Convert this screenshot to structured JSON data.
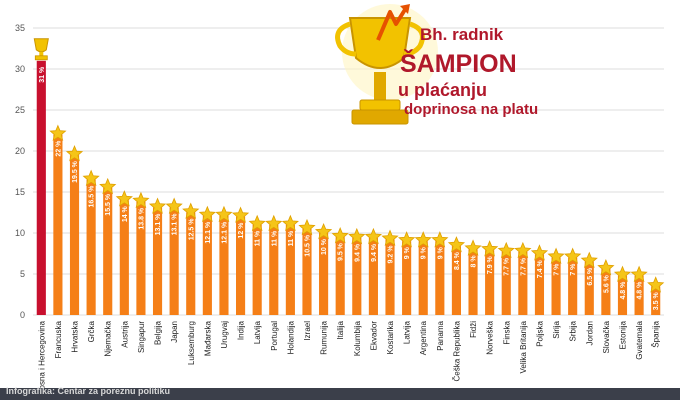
{
  "chart_data": {
    "type": "bar",
    "title_lines": [
      "Bh. radnik",
      "ŠAMPION",
      "u plaćanju",
      "doprinosa na platu"
    ],
    "ylim": [
      0,
      35
    ],
    "yticks": [
      0,
      5,
      10,
      15,
      20,
      25,
      30,
      35
    ],
    "categories": [
      "Bosna i Hercegovina",
      "Francuska",
      "Hrvatska",
      "Grčka",
      "Njemačka",
      "Austrija",
      "Singapur",
      "Belgija",
      "Japan",
      "Luksemburg",
      "Mađarska",
      "Urugvaj",
      "Indija",
      "Latvija",
      "Portugal",
      "Holandija",
      "Izrael",
      "Rumunija",
      "Italija",
      "Kolumbija",
      "Ekvador",
      "Kostarika",
      "Latvija",
      "Argentina",
      "Panama",
      "Češka Republika",
      "Fidži",
      "Norveška",
      "Finska",
      "Velika Britanija",
      "Poljska",
      "Sirija",
      "Srbija",
      "Jordan",
      "Slovačka",
      "Estonija",
      "Gvatemala",
      "Španija"
    ],
    "values": [
      31,
      22,
      19.5,
      16.5,
      15.5,
      14,
      13.8,
      13.1,
      13.1,
      12.5,
      12.1,
      12.1,
      12,
      11,
      11,
      11,
      10.5,
      10,
      9.5,
      9.4,
      9.4,
      9.2,
      9,
      9,
      9,
      8.4,
      8,
      7.9,
      7.7,
      7.7,
      7.4,
      7,
      7,
      6.5,
      5.6,
      4.8,
      4.8,
      3.5
    ],
    "value_labels": [
      "31 %",
      "22 %",
      "19.5 %",
      "16.5 %",
      "15.5 %",
      "14 %",
      "13.8 %",
      "13.1 %",
      "13.1 %",
      "12.5 %",
      "12.1 %",
      "12.1 %",
      "12 %",
      "11 %",
      "11 %",
      "11 %",
      "10.5 %",
      "10 %",
      "9.5 %",
      "9.4 %",
      "9.4 %",
      "9.2 %",
      "9 %",
      "9 %",
      "9 %",
      "8.4 %",
      "8 %",
      "7.9 %",
      "7.7 %",
      "7.7 %",
      "7.4 %",
      "7 %",
      "7 %",
      "6.5 %",
      "5.6 %",
      "4.8 %",
      "4.8 %",
      "3.5 %"
    ],
    "grid": true,
    "highlight_index": 0
  },
  "colors": {
    "highlight_bar": "#c8102e",
    "bar": "#f57f17",
    "star": "#f5c518",
    "trophy": "#f2c200",
    "title": "#b0182b",
    "grid": "#dddddd"
  },
  "footer_text": "Infografika: Centar za poreznu politiku"
}
